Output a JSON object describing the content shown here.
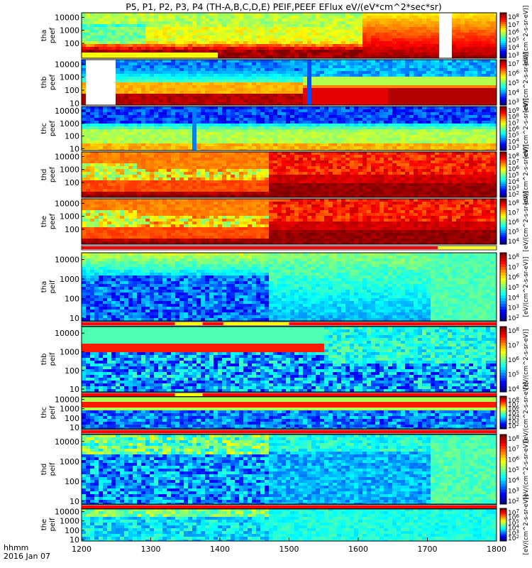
{
  "chart_data": {
    "type": "heatmap",
    "title": "P5, P1, P2, P3, P4 (TH-A,B,C,D,E) PEIF,PEEF EFlux eV/(eV*cm^2*sec*sr)",
    "x": {
      "ticks": [
        1200,
        1300,
        1400,
        1500,
        1600,
        1700,
        1800
      ],
      "tick_labels": [
        "1200",
        "1300",
        "1400",
        "1500",
        "1600",
        "1700",
        "1800"
      ],
      "range": [
        1200,
        1800
      ],
      "label_line1": "hhmm",
      "label_line2": "2016 Jan 07"
    },
    "y_ticks": {
      "e1": [
        "10000",
        "1000",
        "100"
      ],
      "e2": [
        "10000",
        "1000",
        "100",
        "10"
      ]
    },
    "colorbar_exponents": {
      "a": [
        "8",
        "7",
        "6",
        "5",
        "4",
        "3"
      ],
      "b": [
        "7",
        "6",
        "5",
        "4",
        "3"
      ],
      "c": [
        "9",
        "8",
        "7",
        "6",
        "5",
        "4",
        "3"
      ],
      "d": [
        "8",
        "7",
        "6",
        "5",
        "4",
        "3",
        "2"
      ],
      "e": [
        "8",
        "7",
        "6",
        "5",
        "4"
      ],
      "f": [
        "7",
        "6",
        "5",
        "4",
        "3",
        "2"
      ]
    },
    "colorbar_label": "[eV/(cm^2-s-sr-eV)]",
    "colorbar_base": "10",
    "panels": [
      {
        "probe": "tha",
        "line2": "peef",
        "ticks": "e1",
        "cb": "a",
        "cmap": "electron_a"
      },
      {
        "probe": "thb",
        "line2": "peef",
        "ticks": "e2",
        "cb": "b",
        "cmap": "electron_b"
      },
      {
        "probe": "thc",
        "line2": "peef",
        "ticks": "e2",
        "cb": "c",
        "cmap": "electron_c"
      },
      {
        "probe": "thd",
        "line2": "peef",
        "ticks": "e1",
        "cb": "d",
        "cmap": "electron_d"
      },
      {
        "probe": "the",
        "line2": "peef",
        "ticks": "e1",
        "cb": "e",
        "cmap": "electron_e"
      },
      {
        "probe": "tha",
        "line2": "peif",
        "ticks": "e2",
        "cb": "d",
        "cmap": "ion_a"
      },
      {
        "probe": "thb",
        "line2": "peif",
        "ticks": "e2",
        "cb": "e",
        "cmap": "ion_b"
      },
      {
        "probe": "thc",
        "line2": "peif",
        "ticks": "e2",
        "cb": "d",
        "cmap": "ion_c"
      },
      {
        "probe": "thd",
        "line2": "peif",
        "ticks": "e2",
        "cb": "d",
        "cmap": "ion_d"
      },
      {
        "probe": "the",
        "line2": "peif",
        "ticks": "e2",
        "cb": "f",
        "cmap": "ion_e"
      }
    ],
    "mode_bars": [
      {
        "segments": [
          [
            1200,
            1715,
            "red"
          ],
          [
            1715,
            1800,
            "yellow"
          ]
        ]
      },
      {
        "segments": [
          [
            1200,
            1335,
            "red"
          ],
          [
            1335,
            1375,
            "yellow"
          ],
          [
            1375,
            1405,
            "red"
          ],
          [
            1405,
            1500,
            "yellow"
          ],
          [
            1500,
            1800,
            "red"
          ]
        ]
      },
      {
        "segments": [
          [
            1200,
            1335,
            "red"
          ],
          [
            1335,
            1375,
            "yellow"
          ],
          [
            1375,
            1800,
            "red"
          ]
        ]
      },
      {
        "segments": [
          [
            1200,
            1800,
            "red"
          ]
        ]
      },
      {
        "segments": [
          [
            1200,
            1800,
            "red"
          ]
        ]
      }
    ],
    "colors": {
      "high": "#b00000",
      "mid": "#ffff00",
      "low": "#3000c0",
      "mode_red": "#ff0000",
      "mode_yellow": "#ffff00"
    }
  }
}
